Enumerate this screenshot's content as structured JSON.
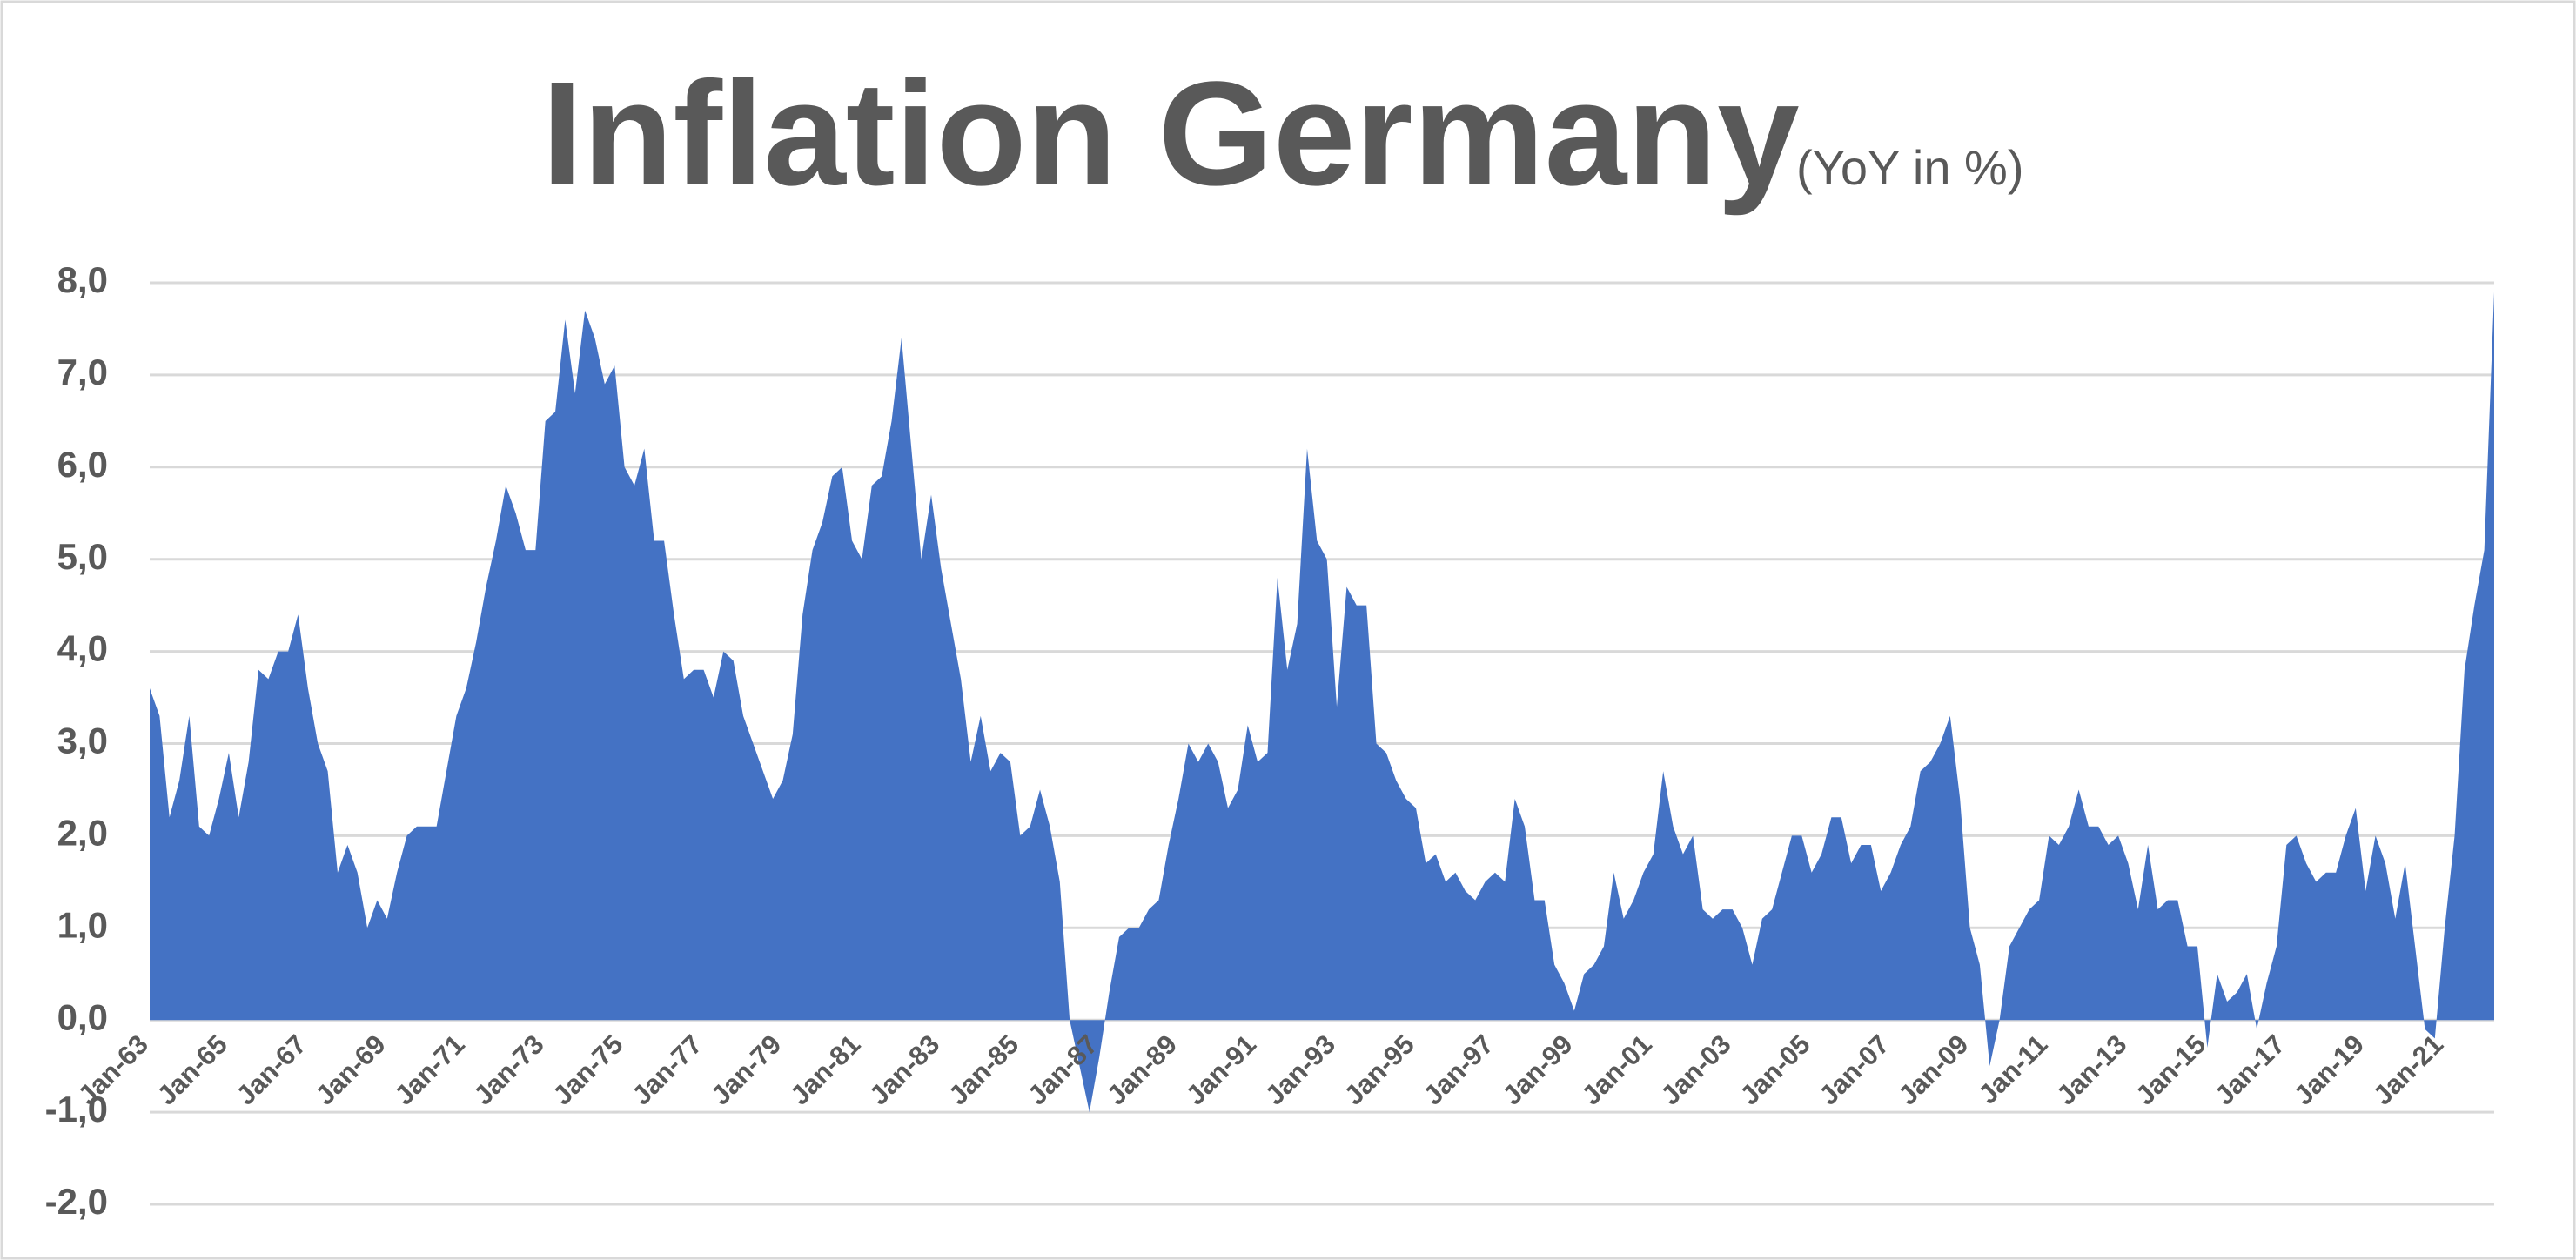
{
  "chart_data": {
    "type": "area",
    "title": "Inflation Germany",
    "subtitle": "(YoY in %)",
    "color": "#4472c4",
    "grid": true,
    "ylim": [
      -2,
      8
    ],
    "yticks": [
      {
        "value": -2,
        "label": "-2,0"
      },
      {
        "value": -1,
        "label": "-1,0"
      },
      {
        "value": 0,
        "label": "0,0"
      },
      {
        "value": 1,
        "label": "1,0"
      },
      {
        "value": 2,
        "label": "2,0"
      },
      {
        "value": 3,
        "label": "3,0"
      },
      {
        "value": 4,
        "label": "4,0"
      },
      {
        "value": 5,
        "label": "5,0"
      },
      {
        "value": 6,
        "label": "6,0"
      },
      {
        "value": 7,
        "label": "7,0"
      },
      {
        "value": 8,
        "label": "8,0"
      }
    ],
    "categories": [
      "Jan-63",
      null,
      null,
      null,
      null,
      null,
      null,
      null,
      "Jan-65",
      null,
      null,
      null,
      null,
      null,
      null,
      null,
      "Jan-67",
      null,
      null,
      null,
      null,
      null,
      null,
      null,
      "Jan-69",
      null,
      null,
      null,
      null,
      null,
      null,
      null,
      "Jan-71",
      null,
      null,
      null,
      null,
      null,
      null,
      null,
      "Jan-73",
      null,
      null,
      null,
      null,
      null,
      null,
      null,
      "Jan-75",
      null,
      null,
      null,
      null,
      null,
      null,
      null,
      "Jan-77",
      null,
      null,
      null,
      null,
      null,
      null,
      null,
      "Jan-79",
      null,
      null,
      null,
      null,
      null,
      null,
      null,
      "Jan-81",
      null,
      null,
      null,
      null,
      null,
      null,
      null,
      "Jan-83",
      null,
      null,
      null,
      null,
      null,
      null,
      null,
      "Jan-85",
      null,
      null,
      null,
      null,
      null,
      null,
      null,
      "Jan-87",
      null,
      null,
      null,
      null,
      null,
      null,
      null,
      "Jan-89",
      null,
      null,
      null,
      null,
      null,
      null,
      null,
      "Jan-91",
      null,
      null,
      null,
      null,
      null,
      null,
      null,
      "Jan-93",
      null,
      null,
      null,
      null,
      null,
      null,
      null,
      "Jan-95",
      null,
      null,
      null,
      null,
      null,
      null,
      null,
      "Jan-97",
      null,
      null,
      null,
      null,
      null,
      null,
      null,
      "Jan-99",
      null,
      null,
      null,
      null,
      null,
      null,
      null,
      "Jan-01",
      null,
      null,
      null,
      null,
      null,
      null,
      null,
      "Jan-03",
      null,
      null,
      null,
      null,
      null,
      null,
      null,
      "Jan-05",
      null,
      null,
      null,
      null,
      null,
      null,
      null,
      "Jan-07",
      null,
      null,
      null,
      null,
      null,
      null,
      null,
      "Jan-09",
      null,
      null,
      null,
      null,
      null,
      null,
      null,
      "Jan-11",
      null,
      null,
      null,
      null,
      null,
      null,
      null,
      "Jan-13",
      null,
      null,
      null,
      null,
      null,
      null,
      null,
      "Jan-15",
      null,
      null,
      null,
      null,
      null,
      null,
      null,
      "Jan-17",
      null,
      null,
      null,
      null,
      null,
      null,
      null,
      "Jan-19",
      null,
      null,
      null,
      null,
      null,
      null,
      null,
      "Jan-21",
      null,
      null,
      null,
      null,
      null
    ],
    "values": [
      3.6,
      3.3,
      2.2,
      2.6,
      3.3,
      2.1,
      2.0,
      2.4,
      2.9,
      2.2,
      2.8,
      3.8,
      3.7,
      4.0,
      4.0,
      4.4,
      3.6,
      3.0,
      2.7,
      1.6,
      1.9,
      1.6,
      1.0,
      1.3,
      1.1,
      1.6,
      2.0,
      2.1,
      2.1,
      2.1,
      2.7,
      3.3,
      3.6,
      4.1,
      4.7,
      5.2,
      5.8,
      5.5,
      5.1,
      5.1,
      6.5,
      6.6,
      7.6,
      6.8,
      7.7,
      7.4,
      6.9,
      7.1,
      6.0,
      5.8,
      6.2,
      5.2,
      5.2,
      4.4,
      3.7,
      3.8,
      3.8,
      3.5,
      4.0,
      3.9,
      3.3,
      3.0,
      2.7,
      2.4,
      2.6,
      3.1,
      4.4,
      5.1,
      5.4,
      5.9,
      6.0,
      5.2,
      5.0,
      5.8,
      5.9,
      6.5,
      7.4,
      6.2,
      5.0,
      5.7,
      4.9,
      4.3,
      3.7,
      2.8,
      3.3,
      2.7,
      2.9,
      2.8,
      2.0,
      2.1,
      2.5,
      2.1,
      1.5,
      0.0,
      -0.5,
      -1.0,
      -0.4,
      0.3,
      0.9,
      1.0,
      1.0,
      1.2,
      1.3,
      1.9,
      2.4,
      3.0,
      2.8,
      3.0,
      2.8,
      2.3,
      2.5,
      3.2,
      2.8,
      2.9,
      4.8,
      3.8,
      4.3,
      6.2,
      5.2,
      5.0,
      3.4,
      4.7,
      4.5,
      4.5,
      3.0,
      2.9,
      2.6,
      2.4,
      2.3,
      1.7,
      1.8,
      1.5,
      1.6,
      1.4,
      1.3,
      1.5,
      1.6,
      1.5,
      2.4,
      2.1,
      1.3,
      1.3,
      0.6,
      0.4,
      0.1,
      0.5,
      0.6,
      0.8,
      1.6,
      1.1,
      1.3,
      1.6,
      1.8,
      2.7,
      2.1,
      1.8,
      2.0,
      1.2,
      1.1,
      1.2,
      1.2,
      1.0,
      0.6,
      1.1,
      1.2,
      1.6,
      2.0,
      2.0,
      1.6,
      1.8,
      2.2,
      2.2,
      1.7,
      1.9,
      1.9,
      1.4,
      1.6,
      1.9,
      2.1,
      2.7,
      2.8,
      3.0,
      3.3,
      2.4,
      1.0,
      0.6,
      -0.5,
      0.0,
      0.8,
      1.0,
      1.2,
      1.3,
      2.0,
      1.9,
      2.1,
      2.5,
      2.1,
      2.1,
      1.9,
      2.0,
      1.7,
      1.2,
      1.9,
      1.2,
      1.3,
      1.3,
      0.8,
      0.8,
      -0.3,
      0.5,
      0.2,
      0.3,
      0.5,
      -0.1,
      0.4,
      0.8,
      1.9,
      2.0,
      1.7,
      1.5,
      1.6,
      1.6,
      2.0,
      2.3,
      1.4,
      2.0,
      1.7,
      1.1,
      1.7,
      0.8,
      -0.1,
      -0.2,
      1.0,
      2.0,
      3.8,
      4.5,
      5.1,
      7.9
    ]
  }
}
